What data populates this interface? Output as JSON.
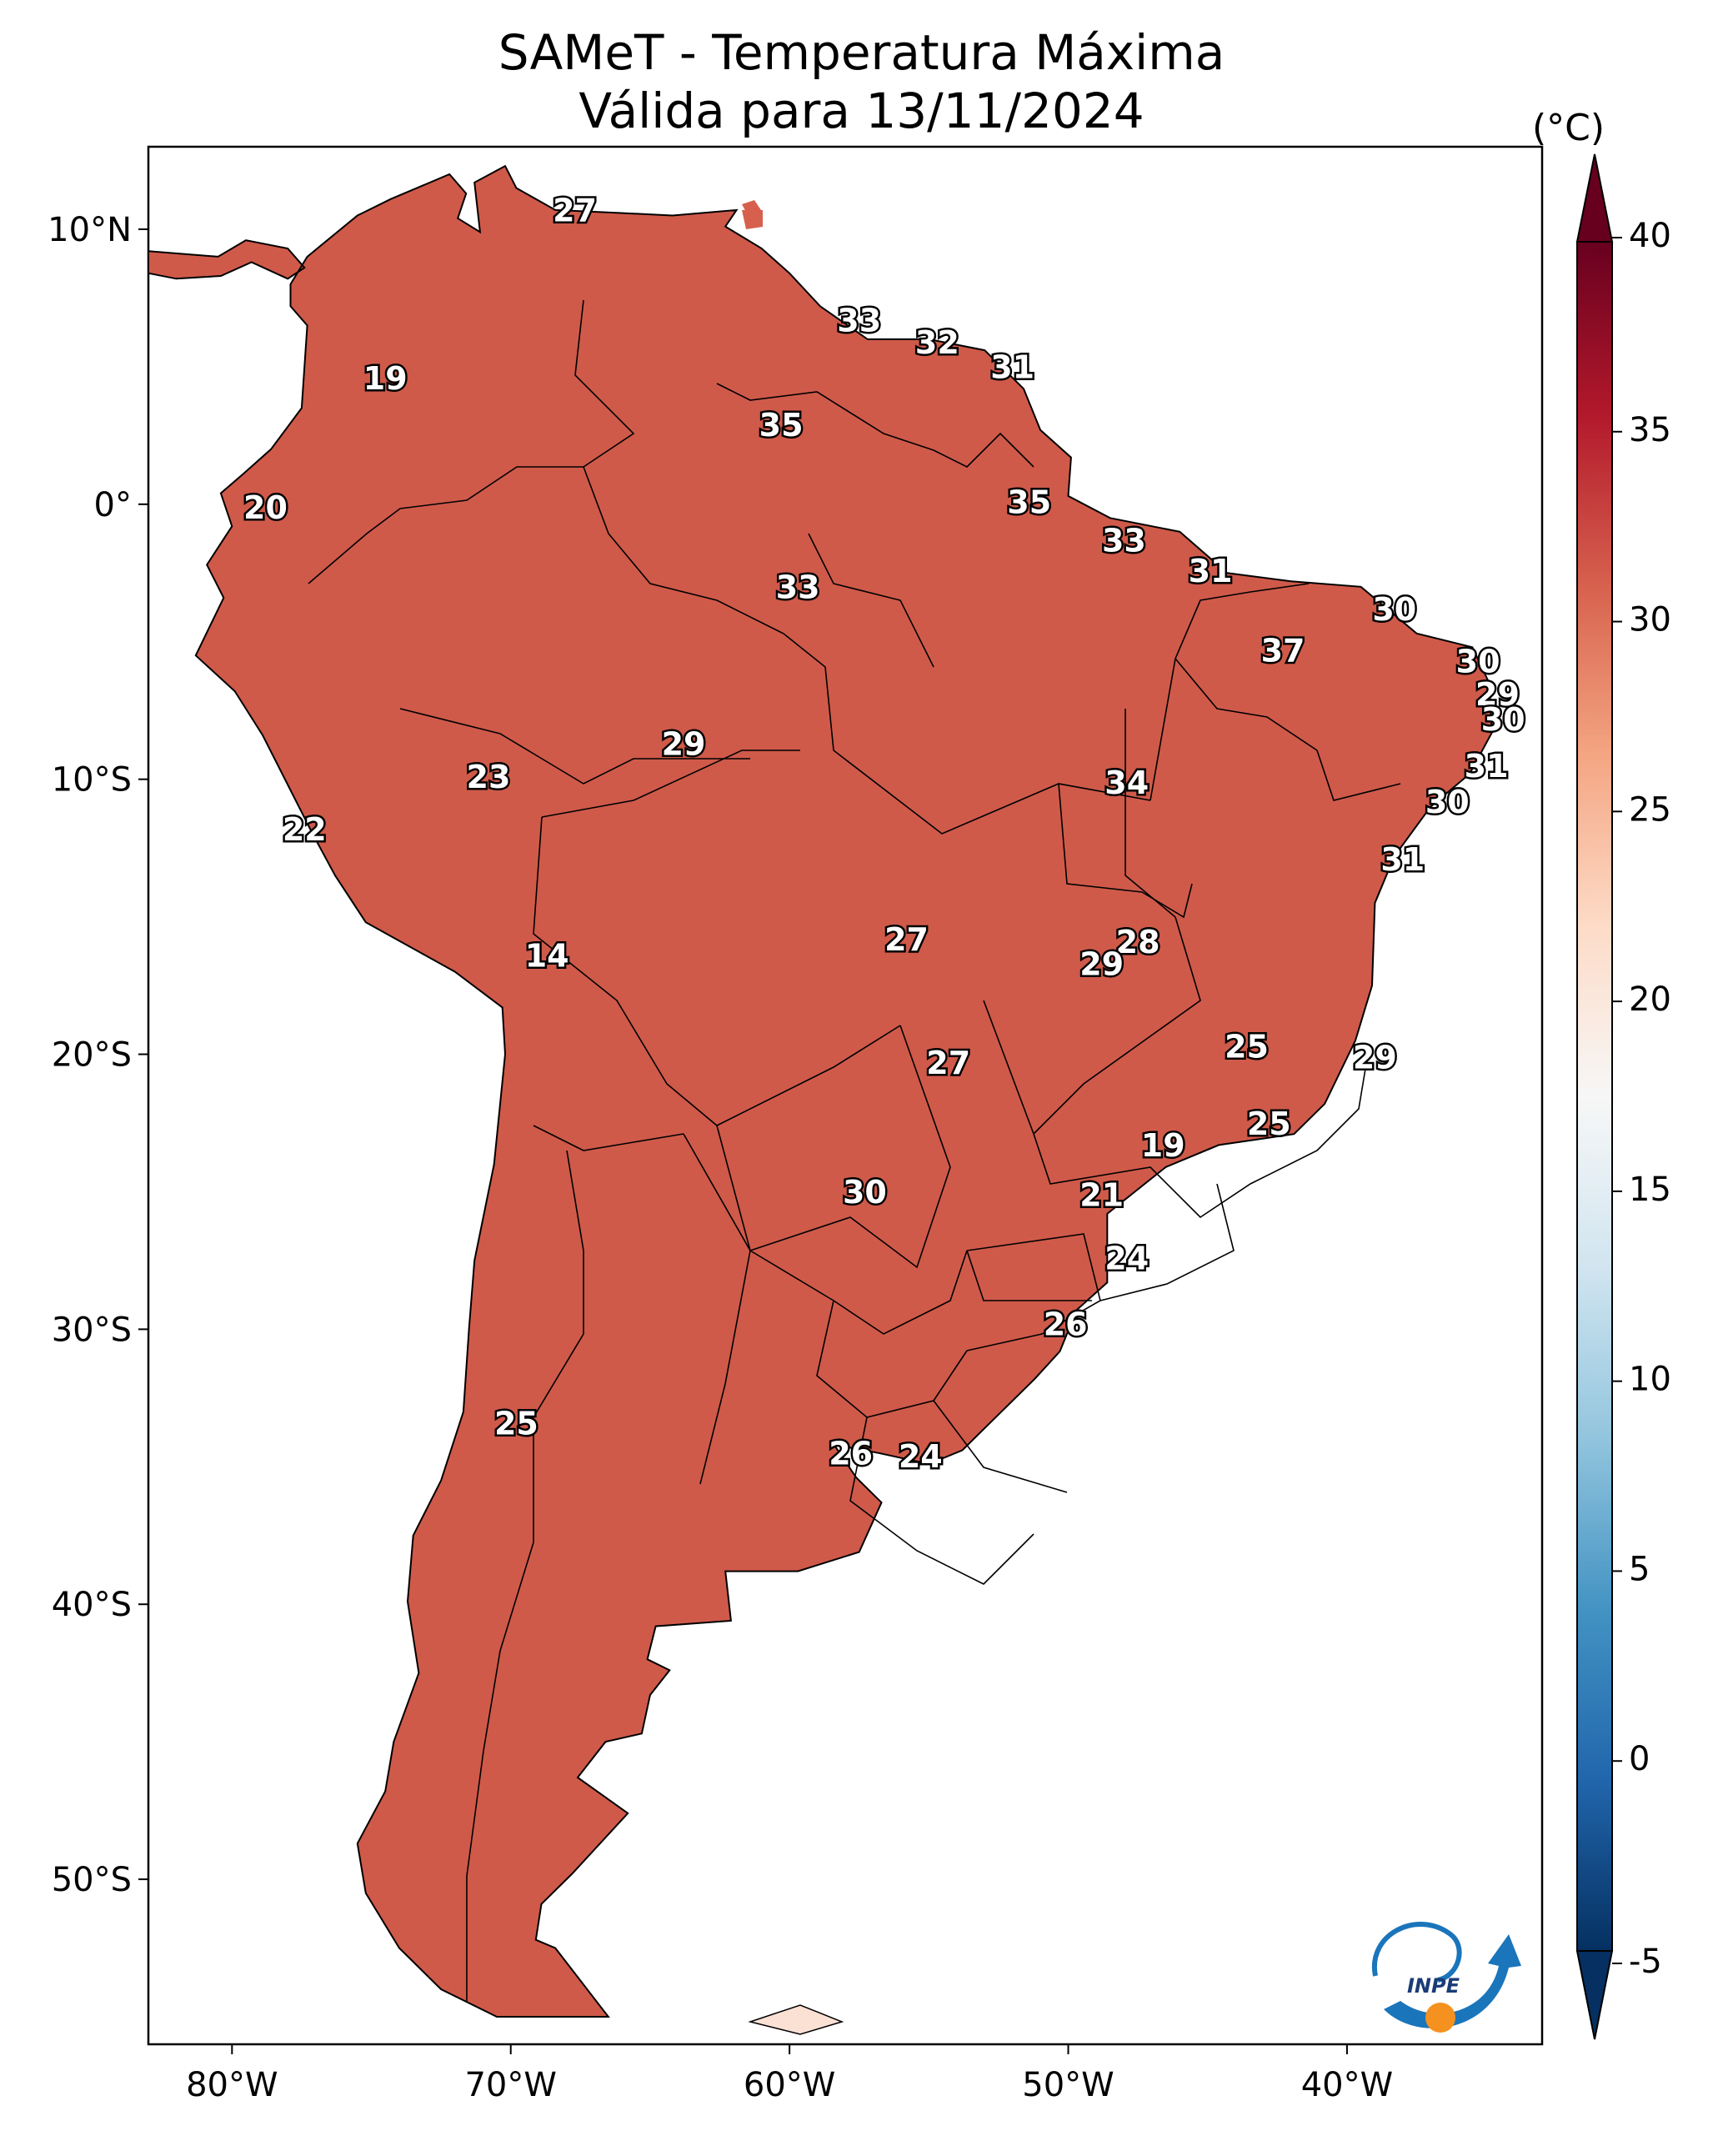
{
  "title": {
    "line1": "SAMeT - Temperatura Máxima",
    "line2": "Válida para 13/11/2024"
  },
  "map": {
    "lon_range": [
      -83,
      -33
    ],
    "lat_range": [
      -56,
      13
    ],
    "lon_ticks": [
      {
        "value": -80,
        "label": "80°W"
      },
      {
        "value": -70,
        "label": "70°W"
      },
      {
        "value": -60,
        "label": "60°W"
      },
      {
        "value": -50,
        "label": "50°W"
      },
      {
        "value": -40,
        "label": "40°W"
      }
    ],
    "lat_ticks": [
      {
        "value": 10,
        "label": "10°N"
      },
      {
        "value": 0,
        "label": "0°"
      },
      {
        "value": -10,
        "label": "10°S"
      },
      {
        "value": -20,
        "label": "20°S"
      },
      {
        "value": -30,
        "label": "30°S"
      },
      {
        "value": -40,
        "label": "40°S"
      },
      {
        "value": -50,
        "label": "50°S"
      }
    ],
    "point_labels": [
      {
        "lon": -67.7,
        "lat": 10.6,
        "text": "27"
      },
      {
        "lon": -74.5,
        "lat": 4.5,
        "text": "19"
      },
      {
        "lon": -78.8,
        "lat": -0.2,
        "text": "20"
      },
      {
        "lon": -57.5,
        "lat": 6.6,
        "text": "33"
      },
      {
        "lon": -54.7,
        "lat": 5.8,
        "text": "32"
      },
      {
        "lon": -52.0,
        "lat": 4.9,
        "text": "31"
      },
      {
        "lon": -60.3,
        "lat": 2.8,
        "text": "35"
      },
      {
        "lon": -51.4,
        "lat": 0.0,
        "text": "35"
      },
      {
        "lon": -48.0,
        "lat": -1.4,
        "text": "33"
      },
      {
        "lon": -59.7,
        "lat": -3.1,
        "text": "33"
      },
      {
        "lon": -44.9,
        "lat": -2.5,
        "text": "31"
      },
      {
        "lon": -38.3,
        "lat": -3.9,
        "text": "30"
      },
      {
        "lon": -42.3,
        "lat": -5.4,
        "text": "37"
      },
      {
        "lon": -35.3,
        "lat": -5.8,
        "text": "30"
      },
      {
        "lon": -34.6,
        "lat": -7.0,
        "text": "29"
      },
      {
        "lon": -34.4,
        "lat": -7.9,
        "text": "30"
      },
      {
        "lon": -63.8,
        "lat": -8.8,
        "text": "29"
      },
      {
        "lon": -70.8,
        "lat": -10.0,
        "text": "23"
      },
      {
        "lon": -47.9,
        "lat": -10.2,
        "text": "34"
      },
      {
        "lon": -35.0,
        "lat": -9.6,
        "text": "31"
      },
      {
        "lon": -36.4,
        "lat": -10.9,
        "text": "30"
      },
      {
        "lon": -77.4,
        "lat": -11.9,
        "text": "22"
      },
      {
        "lon": -38.0,
        "lat": -13.0,
        "text": "31"
      },
      {
        "lon": -68.7,
        "lat": -16.5,
        "text": "14"
      },
      {
        "lon": -55.8,
        "lat": -15.9,
        "text": "27"
      },
      {
        "lon": -47.5,
        "lat": -16.0,
        "text": "28"
      },
      {
        "lon": -48.8,
        "lat": -16.8,
        "text": "29"
      },
      {
        "lon": -54.3,
        "lat": -20.4,
        "text": "27"
      },
      {
        "lon": -43.6,
        "lat": -19.8,
        "text": "25"
      },
      {
        "lon": -39.0,
        "lat": -20.2,
        "text": "29"
      },
      {
        "lon": -42.8,
        "lat": -22.6,
        "text": "25"
      },
      {
        "lon": -46.6,
        "lat": -23.4,
        "text": "19"
      },
      {
        "lon": -57.3,
        "lat": -25.1,
        "text": "30"
      },
      {
        "lon": -48.8,
        "lat": -25.2,
        "text": "21"
      },
      {
        "lon": -47.9,
        "lat": -27.5,
        "text": "24"
      },
      {
        "lon": -50.1,
        "lat": -29.9,
        "text": "26"
      },
      {
        "lon": -69.8,
        "lat": -33.5,
        "text": "25"
      },
      {
        "lon": -57.8,
        "lat": -34.6,
        "text": "26"
      },
      {
        "lon": -55.3,
        "lat": -34.7,
        "text": "24"
      }
    ]
  },
  "colorbar": {
    "unit": "(°C)",
    "min": -5,
    "max": 40,
    "ticks": [
      {
        "value": 40,
        "label": "40"
      },
      {
        "value": 35,
        "label": "35"
      },
      {
        "value": 30,
        "label": "30"
      },
      {
        "value": 25,
        "label": "25"
      },
      {
        "value": 20,
        "label": "20"
      },
      {
        "value": 15,
        "label": "15"
      },
      {
        "value": 10,
        "label": "10"
      },
      {
        "value": 5,
        "label": "5"
      },
      {
        "value": 0,
        "label": "0"
      },
      {
        "value": -5,
        "label": "-5"
      }
    ],
    "colors": [
      "#053061",
      "#2166ac",
      "#4393c3",
      "#92c5de",
      "#d1e5f0",
      "#f7f7f7",
      "#fddbc7",
      "#f4a582",
      "#d6604d",
      "#b2182b",
      "#67001f"
    ]
  },
  "logo": {
    "text": "INPE"
  },
  "palette": {
    "hot": "#b2182b",
    "very_hot": "#8b0f1f",
    "warm": "#d6604d",
    "mild": "#f4a582",
    "cool": "#fddbc7",
    "neutral": "#f7f7f7",
    "cold": "#92c5de",
    "colder": "#4393c3",
    "border": "#000000",
    "logo_blue": "#1a75bb",
    "logo_orange": "#f5911e"
  }
}
